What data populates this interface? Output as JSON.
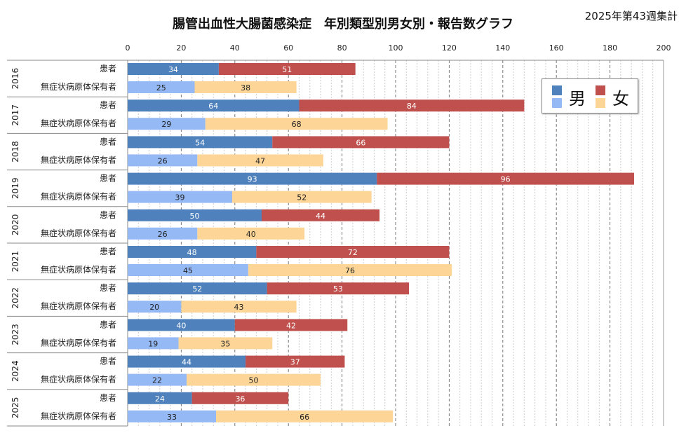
{
  "title": "腸管出血性大腸菌感染症　年別類型別男女別・報告数グラフ",
  "subtitle": "2025年第43週集計",
  "chart_data": {
    "type": "bar",
    "orientation": "horizontal",
    "stacked": true,
    "xlim": [
      0,
      200
    ],
    "xticks": [
      0,
      20,
      40,
      60,
      80,
      100,
      120,
      140,
      160,
      180,
      200
    ],
    "grid": true,
    "legend_position": "top-right",
    "legend": {
      "male": "男",
      "female": "女"
    },
    "colors": {
      "patient_male": "#4f81bd",
      "patient_female": "#c0504d",
      "carrier_male": "#95b9f5",
      "carrier_female": "#fdd597"
    },
    "row_labels": {
      "patient": "患者",
      "carrier": "無症状病原体保有者"
    },
    "years": [
      {
        "year": "2016",
        "patient": [
          34,
          51
        ],
        "carrier": [
          25,
          38
        ]
      },
      {
        "year": "2017",
        "patient": [
          64,
          84
        ],
        "carrier": [
          29,
          68
        ]
      },
      {
        "year": "2018",
        "patient": [
          54,
          66
        ],
        "carrier": [
          26,
          47
        ]
      },
      {
        "year": "2019",
        "patient": [
          93,
          96
        ],
        "carrier": [
          39,
          52
        ]
      },
      {
        "year": "2020",
        "patient": [
          50,
          44
        ],
        "carrier": [
          26,
          40
        ]
      },
      {
        "year": "2021",
        "patient": [
          48,
          72
        ],
        "carrier": [
          45,
          76
        ]
      },
      {
        "year": "2022",
        "patient": [
          52,
          53
        ],
        "carrier": [
          20,
          43
        ]
      },
      {
        "year": "2023",
        "patient": [
          40,
          42
        ],
        "carrier": [
          19,
          35
        ]
      },
      {
        "year": "2024",
        "patient": [
          44,
          37
        ],
        "carrier": [
          22,
          50
        ]
      },
      {
        "year": "2025",
        "patient": [
          24,
          36
        ],
        "carrier": [
          33,
          66
        ]
      }
    ]
  }
}
